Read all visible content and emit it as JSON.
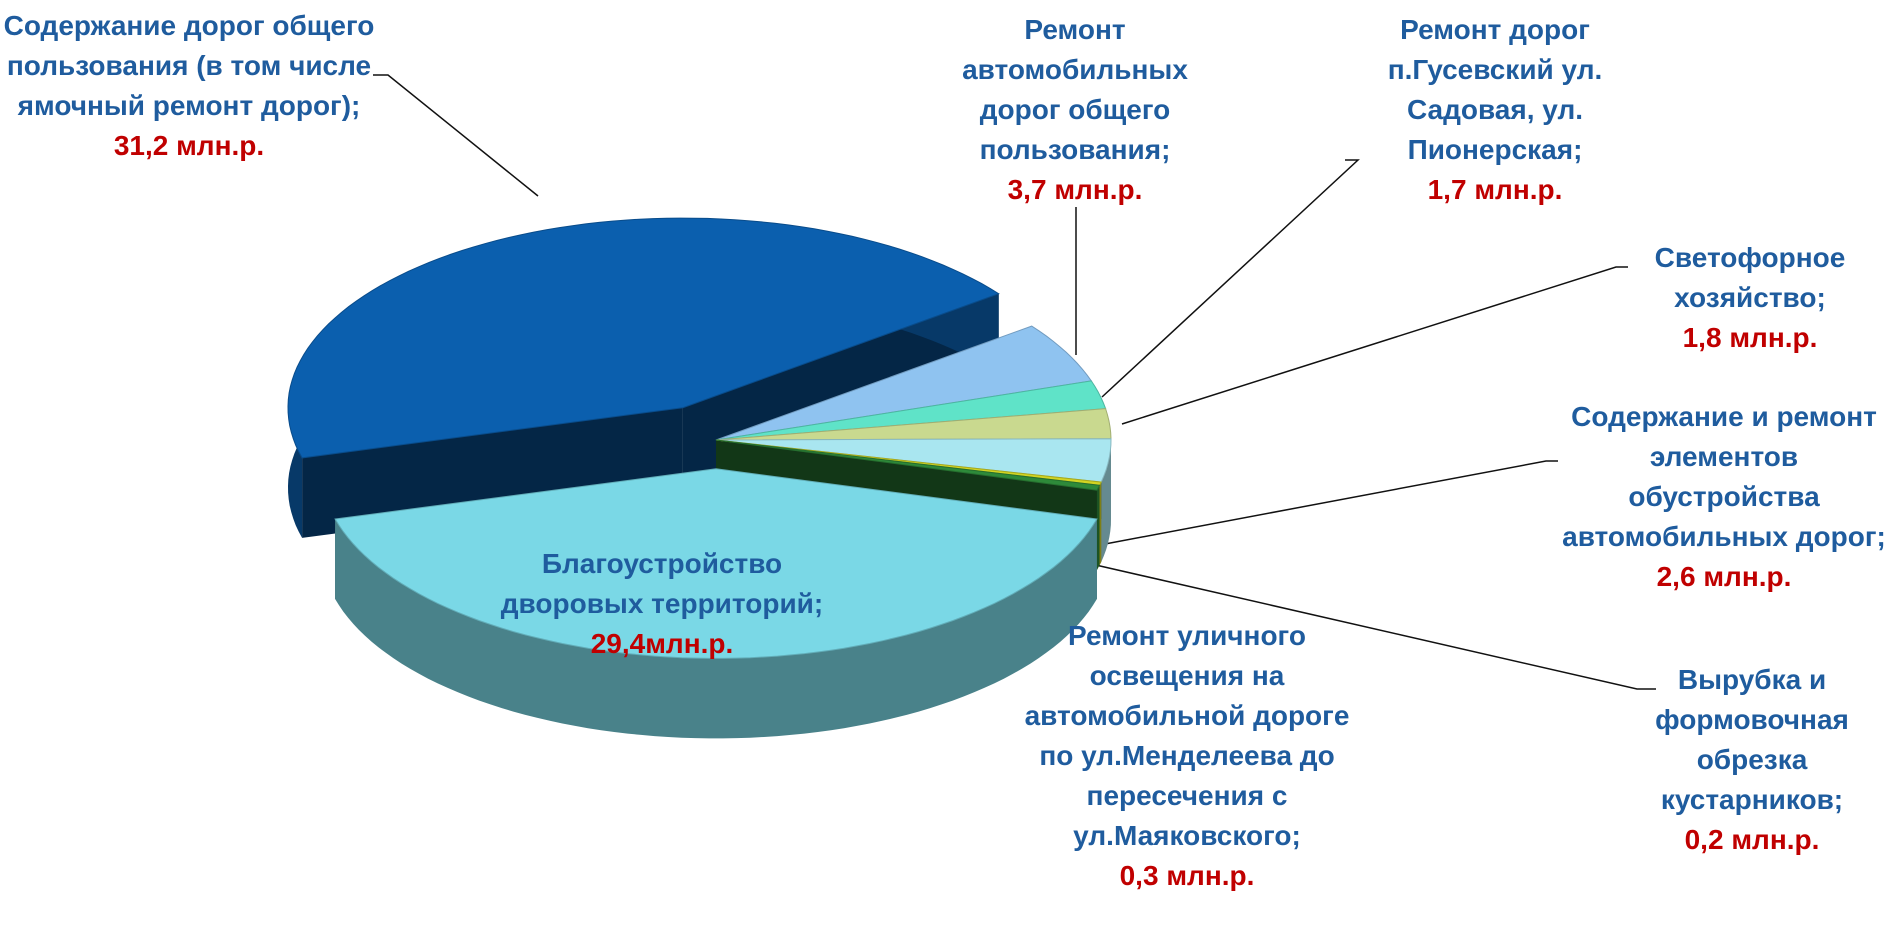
{
  "chart_data": {
    "type": "pie3d",
    "categories": [
      "Содержание дорог общего пользования (в том числе ямочный ремонт дорог);",
      "Ремонт автомобильных дорог общего пользования;",
      "Ремонт дорог п.Гусевский ул. Садовая, ул. Пионерская;",
      "Светофорное хозяйство;",
      "Содержание и ремонт элементов обустройства автомобильных дорог;",
      "Вырубка и формовочная обрезка кустарников;",
      "Ремонт уличного освещения на автомобильной дороге по ул.Менделеева до пересечения с ул.Маяковского;",
      "Благоустройство дворовых территорий;"
    ],
    "values": [
      31.2,
      3.7,
      1.7,
      1.8,
      2.6,
      0.2,
      0.3,
      29.4
    ],
    "value_labels": [
      "31,2 млн.р.",
      "3,7 млн.р.",
      "1,7 млн.р.",
      "1,8 млн.р.",
      "2,6 млн.р.",
      "0,2 млн.р.",
      "0,3 млн.р.",
      "29,4млн.р."
    ],
    "colors": [
      "#0b5fae",
      "#8fc3f0",
      "#5fe3c8",
      "#c9d98f",
      "#a9e6f0",
      "#d2d423",
      "#2e8a3a",
      "#7ad8e6"
    ]
  }
}
